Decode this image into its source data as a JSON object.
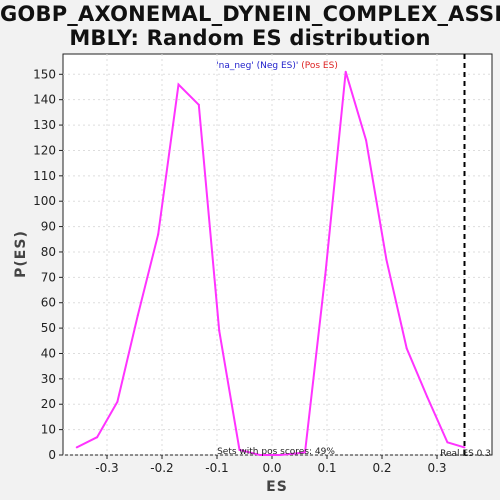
{
  "title_line1": "GOBP_AXONEMAL_DYNEIN_COMPLEX_ASSE",
  "title_line2": "MBLY: Random ES distribution",
  "legend": {
    "neg_label": "'na_neg' (Neg ES)'",
    "pos_label": " (Pos ES)",
    "neg_color": "#2222cc",
    "pos_color": "#dd2222"
  },
  "annotations": {
    "pos_scores": "Sets with pos scores: 49%",
    "real_es": "Real ES 0.3"
  },
  "chart_data": {
    "type": "line",
    "title": "GOBP_AXONEMAL_DYNEIN_COMPLEX_ASSEMBLY: Random ES distribution",
    "xlabel": "ES",
    "ylabel": "P(ES)",
    "xlim": [
      -0.38,
      0.4
    ],
    "ylim": [
      0,
      158
    ],
    "xticks": [
      -0.3,
      -0.2,
      -0.1,
      0.0,
      0.1,
      0.2,
      0.3
    ],
    "xtick_labels": [
      "-0.3",
      "-0.2",
      "-0.1",
      "0.0",
      "0.1",
      "0.2",
      "0.3"
    ],
    "yticks": [
      0,
      10,
      20,
      30,
      40,
      50,
      60,
      70,
      80,
      90,
      100,
      110,
      120,
      130,
      140,
      150
    ],
    "grid": true,
    "series": [
      {
        "color": "#ff33ff",
        "x": [
          -0.355,
          -0.318,
          -0.281,
          -0.244,
          -0.207,
          -0.17,
          -0.133,
          -0.096,
          -0.059,
          -0.022,
          0.015,
          0.06,
          0.097,
          0.134,
          0.171,
          0.208,
          0.245,
          0.282,
          0.319,
          0.35
        ],
        "y": [
          3,
          7,
          21,
          55,
          87,
          146,
          138,
          49,
          2,
          0,
          0,
          1,
          71,
          151,
          124,
          77,
          42,
          23,
          5,
          3
        ]
      }
    ],
    "vline": {
      "x": 0.35,
      "style": "dashed",
      "color": "#000000"
    }
  }
}
